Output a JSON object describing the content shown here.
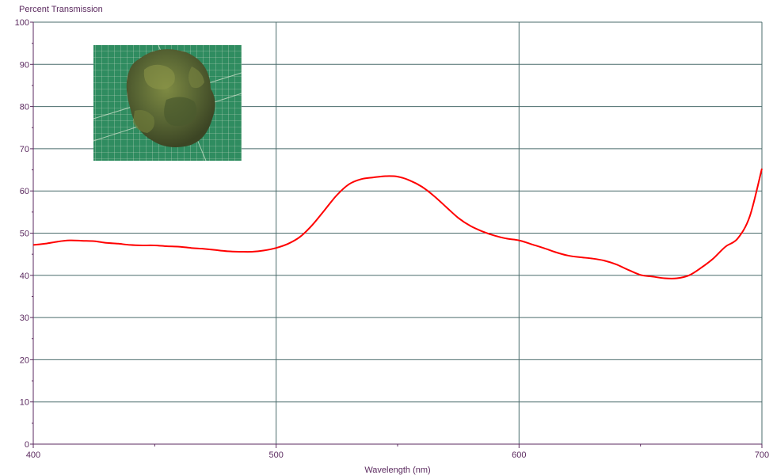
{
  "chart_data": {
    "type": "line",
    "ylabel": "Percent Transmission",
    "xlabel": "Wavelength (nm)",
    "xlim": [
      400,
      700
    ],
    "ylim": [
      0,
      100
    ],
    "x_ticks": [
      400,
      500,
      600,
      700
    ],
    "y_ticks": [
      0,
      10,
      20,
      30,
      40,
      50,
      60,
      70,
      80,
      90,
      100
    ],
    "grid": true,
    "series": [
      {
        "color": "#ff0000",
        "x": [
          400,
          405,
          410,
          415,
          420,
          425,
          430,
          435,
          440,
          445,
          450,
          455,
          460,
          465,
          470,
          475,
          480,
          485,
          490,
          495,
          500,
          505,
          510,
          515,
          520,
          525,
          530,
          535,
          540,
          545,
          550,
          555,
          560,
          565,
          570,
          575,
          580,
          585,
          590,
          595,
          600,
          605,
          610,
          615,
          620,
          625,
          630,
          635,
          640,
          645,
          650,
          655,
          660,
          665,
          670,
          675,
          680,
          685,
          690,
          695,
          700
        ],
        "y": [
          47.2,
          47.5,
          48.0,
          48.3,
          48.2,
          48.1,
          47.7,
          47.5,
          47.2,
          47.1,
          47.1,
          46.9,
          46.8,
          46.5,
          46.3,
          46.0,
          45.7,
          45.6,
          45.6,
          45.9,
          46.5,
          47.5,
          49.2,
          52.0,
          55.5,
          59.0,
          61.6,
          62.8,
          63.2,
          63.5,
          63.4,
          62.5,
          61.0,
          58.8,
          56.2,
          53.6,
          51.7,
          50.4,
          49.4,
          48.7,
          48.3,
          47.4,
          46.5,
          45.5,
          44.7,
          44.3,
          44.0,
          43.5,
          42.6,
          41.3,
          40.1,
          39.7,
          39.3,
          39.3,
          40.0,
          41.8,
          44.0,
          46.8,
          48.7,
          54.0,
          65.3
        ]
      }
    ]
  },
  "inset_photo": {
    "subject": "broccoli floret on green cutting mat"
  },
  "colors": {
    "grid": "#4a6b6b",
    "axis": "#5b2a5f",
    "line": "#ff0000",
    "mat": "#2e8a5e"
  }
}
